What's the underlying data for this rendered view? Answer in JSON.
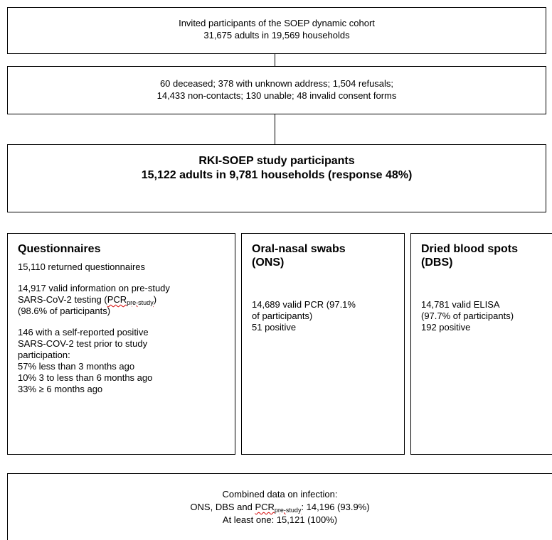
{
  "invited": {
    "line1": "Invited participants of the SOEP dynamic cohort",
    "line2": "31,675 adults in 19,569 households"
  },
  "exclusions": {
    "line1": "60 deceased; 378 with unknown address; 1,504 refusals;",
    "line2": "14,433 non-contacts; 130 unable; 48 invalid consent forms"
  },
  "participants": {
    "line1": "RKI-SOEP study participants",
    "line2": "15,122 adults in 9,781 households (response 48%)"
  },
  "questionnaires": {
    "title": "Questionnaires",
    "returned": "15,110 returned questionnaires",
    "valid_line1": "14,917 valid information on pre-study",
    "valid_line2_prefix": "SARS-CoV-2 testing (",
    "pcr": "PCR",
    "pcr_sub": "pre-study",
    "valid_line2_suffix": ")",
    "valid_line3": "(98.6% of participants)",
    "selfreport_line1": "146 with a self-reported positive",
    "selfreport_line2": "SARS-COV-2 test prior to study",
    "selfreport_line3": "participation:",
    "ago1": "57% less than 3 months ago",
    "ago2": "10% 3 to less than 6 months ago",
    "ago3": "33% ≥ 6 months ago"
  },
  "swabs": {
    "title_line1": "Oral-nasal swabs",
    "title_line2": "(ONS)",
    "valid_line1": "14,689 valid PCR (97.1%",
    "valid_line2": "of participants)",
    "positive": "51 positive"
  },
  "blood": {
    "title_line1": "Dried blood spots",
    "title_line2": "(DBS)",
    "valid_line1": "14,781 valid ELISA",
    "valid_line2": "(97.7% of participants)",
    "positive": "192 positive"
  },
  "combined": {
    "line1": "Combined data on infection:",
    "line2_prefix": "ONS, DBS and ",
    "pcr": "PCR",
    "pcr_sub": "pre-study",
    "line2_suffix": ": 14,196 (93.9%)",
    "line3": "At least one: 15,121 (100%)"
  }
}
